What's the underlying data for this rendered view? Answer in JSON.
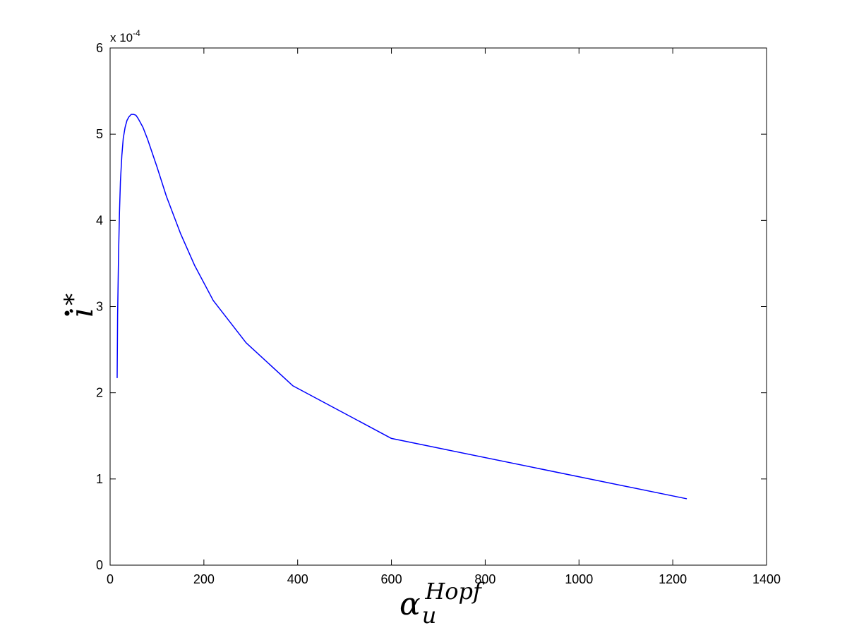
{
  "chart_data": {
    "type": "line",
    "title": "",
    "xlabel": {
      "base": "α",
      "sub": "u",
      "sup": "Hopf"
    },
    "ylabel": {
      "base": "i",
      "sup": "*",
      "dot": true
    },
    "xlim": [
      0,
      1400
    ],
    "ylim": [
      0,
      6
    ],
    "y_multiplier_text": "x 10",
    "y_multiplier_exp": "-4",
    "xticks": [
      0,
      200,
      400,
      600,
      800,
      1000,
      1200,
      1400
    ],
    "yticks": [
      0,
      1,
      2,
      3,
      4,
      5,
      6
    ],
    "xtick_labels": [
      "0",
      "200",
      "400",
      "600",
      "800",
      "1000",
      "1200",
      "1400"
    ],
    "ytick_labels": [
      "0",
      "1",
      "2",
      "3",
      "4",
      "5",
      "6"
    ],
    "grid": false,
    "line_color": "#0000ff",
    "series": [
      {
        "x": [
          15,
          16,
          18,
          20,
          22,
          25,
          28,
          32,
          36,
          40,
          45,
          50,
          55,
          60,
          70,
          80,
          100,
          120,
          150,
          180,
          220,
          290,
          390,
          600,
          1230
        ],
        "y": [
          2.17,
          2.9,
          3.6,
          4.1,
          4.45,
          4.75,
          4.95,
          5.08,
          5.16,
          5.2,
          5.23,
          5.23,
          5.22,
          5.18,
          5.08,
          4.94,
          4.62,
          4.28,
          3.85,
          3.48,
          3.07,
          2.58,
          2.08,
          1.47,
          0.77
        ]
      }
    ]
  }
}
